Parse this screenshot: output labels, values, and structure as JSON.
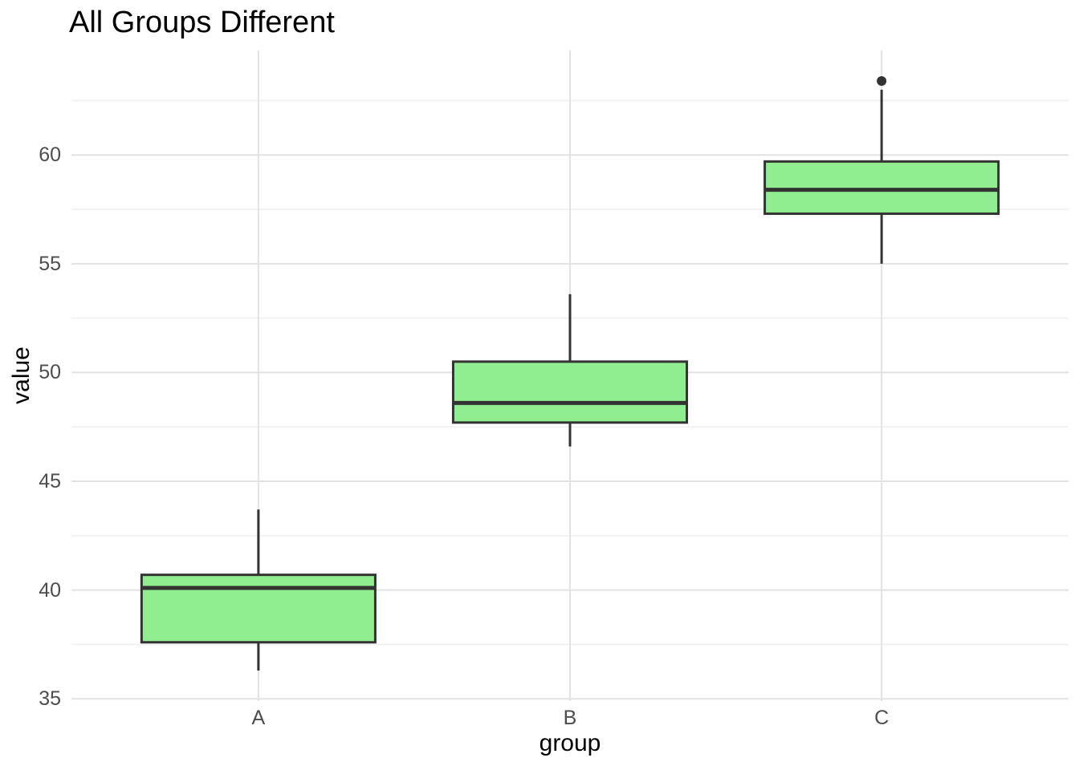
{
  "title": "All Groups Different",
  "chart_data": {
    "type": "boxplot",
    "title": "All Groups Different",
    "xlabel": "group",
    "ylabel": "value",
    "categories": [
      "A",
      "B",
      "C"
    ],
    "y_ticks": [
      35,
      40,
      45,
      50,
      55,
      60
    ],
    "y_minor_ticks": [
      37.5,
      42.5,
      47.5,
      52.5,
      57.5,
      62.5
    ],
    "ylim": [
      34.9,
      64.8
    ],
    "grid": "horizontal major+minor, vertical major at categories",
    "legend": "none",
    "series": [
      {
        "group": "A",
        "whisker_low": 36.3,
        "q1": 37.6,
        "median": 40.1,
        "q3": 40.7,
        "whisker_high": 43.7,
        "outliers": []
      },
      {
        "group": "B",
        "whisker_low": 46.6,
        "q1": 47.7,
        "median": 48.6,
        "q3": 50.5,
        "whisker_high": 53.6,
        "outliers": []
      },
      {
        "group": "C",
        "whisker_low": 55.0,
        "q1": 57.3,
        "median": 58.4,
        "q3": 59.7,
        "whisker_high": 63.0,
        "outliers": [
          63.4
        ]
      }
    ],
    "colors": {
      "box_fill": "#90EE90",
      "box_stroke": "#333333",
      "median": "#333333",
      "whisker": "#333333",
      "outlier": "#333333",
      "grid_major": "#E2E2E2",
      "grid_minor": "#F2F2F2",
      "tick_label": "#4d4d4d",
      "text": "#000000",
      "background": "#FFFFFF"
    }
  }
}
